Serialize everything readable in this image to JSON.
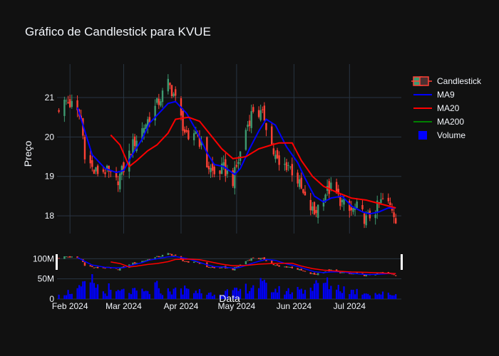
{
  "chart_data": {
    "type": "candlestick",
    "title": "Gráfico de Candlestick para KVUE",
    "ylabel": "Preço",
    "xlabel": "Data",
    "ylim": [
      17.55,
      21.85
    ],
    "y_ticks": [
      18,
      19,
      20,
      21
    ],
    "x_ticks": [
      {
        "date": "2024-02-01",
        "label": "Feb 2024"
      },
      {
        "date": "2024-03-01",
        "label": "Mar 2024"
      },
      {
        "date": "2024-04-01",
        "label": "Apr 2024"
      },
      {
        "date": "2024-05-01",
        "label": "May 2024"
      },
      {
        "date": "2024-06-01",
        "label": "Jun 2024"
      },
      {
        "date": "2024-07-01",
        "label": "Jul 2024"
      }
    ],
    "x_range": [
      "2024-01-25",
      "2024-07-29"
    ],
    "volume_ticks": [
      {
        "value": 0,
        "label": "0"
      },
      {
        "value": 50000000,
        "label": "50M"
      },
      {
        "value": 100000000,
        "label": "100M"
      }
    ],
    "volume_ylim": [
      0,
      120000000
    ],
    "colors": {
      "increasing": "#3d9970",
      "decreasing": "#ff4136",
      "ma9": "#0000ff",
      "ma20": "#ff0000",
      "ma200": "#008000",
      "volume": "#0000ff",
      "background": "#111111",
      "grid": "#283442",
      "text": "#f2f5fa"
    },
    "legend": {
      "position": "top-right",
      "items": [
        {
          "name": "Candlestick",
          "symbol": "candle"
        },
        {
          "name": "MA9",
          "symbol": "line",
          "color": "#0000ff"
        },
        {
          "name": "MA20",
          "symbol": "line",
          "color": "#ff0000"
        },
        {
          "name": "MA200",
          "symbol": "line",
          "color": "#008000"
        },
        {
          "name": "Volume",
          "symbol": "square",
          "color": "#0000ff"
        }
      ]
    },
    "close_anchors": [
      [
        "2024-01-26",
        20.75
      ],
      [
        "2024-01-30",
        20.9
      ],
      [
        "2024-02-02",
        20.8
      ],
      [
        "2024-02-07",
        20.45
      ],
      [
        "2024-02-09",
        19.6
      ],
      [
        "2024-02-14",
        19.1
      ],
      [
        "2024-02-20",
        19.15
      ],
      [
        "2024-02-26",
        18.85
      ],
      [
        "2024-03-01",
        19.2
      ],
      [
        "2024-03-06",
        19.8
      ],
      [
        "2024-03-11",
        20.2
      ],
      [
        "2024-03-15",
        20.5
      ],
      [
        "2024-03-20",
        20.9
      ],
      [
        "2024-03-25",
        21.35
      ],
      [
        "2024-03-28",
        21.1
      ],
      [
        "2024-04-02",
        20.3
      ],
      [
        "2024-04-05",
        19.8
      ],
      [
        "2024-04-09",
        20.2
      ],
      [
        "2024-04-15",
        19.3
      ],
      [
        "2024-04-19",
        19.05
      ],
      [
        "2024-04-24",
        19.2
      ],
      [
        "2024-04-29",
        18.9
      ],
      [
        "2024-05-02",
        19.4
      ],
      [
        "2024-05-06",
        20.2
      ],
      [
        "2024-05-10",
        20.7
      ],
      [
        "2024-05-16",
        20.5
      ],
      [
        "2024-05-21",
        19.6
      ],
      [
        "2024-05-24",
        19.25
      ],
      [
        "2024-05-29",
        19.3
      ],
      [
        "2024-06-03",
        18.9
      ],
      [
        "2024-06-07",
        18.4
      ],
      [
        "2024-06-12",
        18.05
      ],
      [
        "2024-06-17",
        18.55
      ],
      [
        "2024-06-21",
        18.7
      ],
      [
        "2024-06-26",
        18.4
      ],
      [
        "2024-07-01",
        18.1
      ],
      [
        "2024-07-05",
        18.2
      ],
      [
        "2024-07-10",
        17.9
      ],
      [
        "2024-07-15",
        18.15
      ],
      [
        "2024-07-19",
        18.4
      ],
      [
        "2024-07-24",
        18.2
      ],
      [
        "2024-07-26",
        17.95
      ]
    ],
    "ma9_anchors": [
      [
        "2024-02-05",
        20.75
      ],
      [
        "2024-02-08",
        20.3
      ],
      [
        "2024-02-13",
        19.55
      ],
      [
        "2024-02-20",
        19.2
      ],
      [
        "2024-02-26",
        19.1
      ],
      [
        "2024-03-01",
        19.15
      ],
      [
        "2024-03-05",
        19.5
      ],
      [
        "2024-03-11",
        19.95
      ],
      [
        "2024-03-15",
        20.35
      ],
      [
        "2024-03-20",
        20.6
      ],
      [
        "2024-03-25",
        20.85
      ],
      [
        "2024-03-29",
        20.9
      ],
      [
        "2024-04-04",
        20.6
      ],
      [
        "2024-04-10",
        20.1
      ],
      [
        "2024-04-15",
        19.6
      ],
      [
        "2024-04-19",
        19.3
      ],
      [
        "2024-04-24",
        19.25
      ],
      [
        "2024-04-30",
        19.05
      ],
      [
        "2024-05-03",
        19.2
      ],
      [
        "2024-05-08",
        19.7
      ],
      [
        "2024-05-13",
        20.15
      ],
      [
        "2024-05-17",
        20.45
      ],
      [
        "2024-05-22",
        20.3
      ],
      [
        "2024-05-28",
        19.75
      ],
      [
        "2024-06-03",
        19.35
      ],
      [
        "2024-06-07",
        18.95
      ],
      [
        "2024-06-12",
        18.5
      ],
      [
        "2024-06-17",
        18.35
      ],
      [
        "2024-06-21",
        18.45
      ],
      [
        "2024-06-27",
        18.5
      ],
      [
        "2024-07-02",
        18.25
      ],
      [
        "2024-07-08",
        18.1
      ],
      [
        "2024-07-12",
        18.05
      ],
      [
        "2024-07-17",
        18.1
      ],
      [
        "2024-07-22",
        18.2
      ],
      [
        "2024-07-26",
        18.2
      ]
    ],
    "ma20_anchors": [
      [
        "2024-02-23",
        20.05
      ],
      [
        "2024-02-28",
        19.8
      ],
      [
        "2024-03-04",
        19.25
      ],
      [
        "2024-03-08",
        19.4
      ],
      [
        "2024-03-14",
        19.65
      ],
      [
        "2024-03-19",
        19.8
      ],
      [
        "2024-03-25",
        20.1
      ],
      [
        "2024-03-29",
        20.45
      ],
      [
        "2024-04-05",
        20.5
      ],
      [
        "2024-04-11",
        20.4
      ],
      [
        "2024-04-17",
        20.05
      ],
      [
        "2024-04-23",
        19.7
      ],
      [
        "2024-04-29",
        19.45
      ],
      [
        "2024-05-06",
        19.5
      ],
      [
        "2024-05-13",
        19.7
      ],
      [
        "2024-05-20",
        19.8
      ],
      [
        "2024-05-24",
        19.85
      ],
      [
        "2024-05-31",
        19.85
      ],
      [
        "2024-06-05",
        19.4
      ],
      [
        "2024-06-11",
        19.0
      ],
      [
        "2024-06-17",
        18.75
      ],
      [
        "2024-06-24",
        18.6
      ],
      [
        "2024-07-02",
        18.45
      ],
      [
        "2024-07-10",
        18.4
      ],
      [
        "2024-07-18",
        18.3
      ],
      [
        "2024-07-26",
        18.2
      ]
    ],
    "volume_anchors": [
      [
        "2024-01-26",
        12000000
      ],
      [
        "2024-02-06",
        25000000
      ],
      [
        "2024-02-13",
        45000000
      ],
      [
        "2024-02-20",
        15000000
      ],
      [
        "2024-03-01",
        20000000
      ],
      [
        "2024-03-15",
        18000000
      ],
      [
        "2024-04-01",
        22000000
      ],
      [
        "2024-04-15",
        14000000
      ],
      [
        "2024-05-01",
        20000000
      ],
      [
        "2024-05-13",
        40000000
      ],
      [
        "2024-05-20",
        25000000
      ],
      [
        "2024-06-03",
        18000000
      ],
      [
        "2024-06-17",
        42000000
      ],
      [
        "2024-07-01",
        22000000
      ],
      [
        "2024-07-15",
        15000000
      ],
      [
        "2024-07-26",
        12000000
      ]
    ]
  }
}
